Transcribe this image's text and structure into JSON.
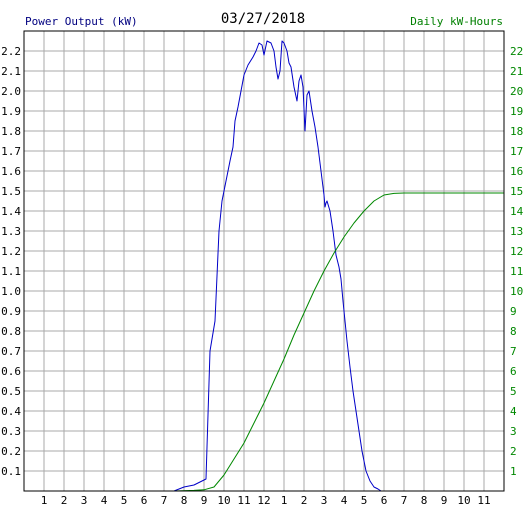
{
  "header": {
    "left_label": "Power Output (kW)",
    "title": "03/27/2018",
    "right_label": "Daily kW-Hours"
  },
  "colors": {
    "power": "#0000c8",
    "energy": "#008800",
    "grid": "#a8a8a8",
    "axis": "#000000",
    "left_label": "#000080",
    "right_label": "#008000"
  },
  "chart_data": {
    "type": "line",
    "title": "03/27/2018",
    "grid": true,
    "x_ticks": [
      "1",
      "2",
      "3",
      "4",
      "5",
      "6",
      "7",
      "8",
      "9",
      "10",
      "11",
      "12",
      "1",
      "2",
      "3",
      "4",
      "5",
      "6",
      "7",
      "8",
      "9",
      "10",
      "11"
    ],
    "xlim": [
      0,
      24
    ],
    "y_left": {
      "label": "Power Output (kW)",
      "range": [
        0,
        2.3
      ],
      "ticks": [
        "0.1",
        "0.2",
        "0.3",
        "0.4",
        "0.5",
        "0.6",
        "0.7",
        "0.8",
        "0.9",
        "1.0",
        "1.1",
        "1.2",
        "1.3",
        "1.4",
        "1.5",
        "1.6",
        "1.7",
        "1.8",
        "1.9",
        "2.0",
        "2.1",
        "2.2"
      ]
    },
    "y_right": {
      "label": "Daily kW-Hours",
      "range": [
        0,
        23
      ],
      "ticks": [
        "1",
        "2",
        "3",
        "4",
        "5",
        "6",
        "7",
        "8",
        "9",
        "10",
        "11",
        "12",
        "13",
        "14",
        "15",
        "16",
        "17",
        "18",
        "19",
        "20",
        "21",
        "22"
      ]
    },
    "series": [
      {
        "name": "Power Output (kW)",
        "axis": "left",
        "x": [
          7.5,
          8.0,
          8.5,
          8.9,
          9.1,
          9.3,
          9.55,
          9.75,
          9.9,
          10.1,
          10.3,
          10.45,
          10.55,
          10.7,
          10.85,
          11.0,
          11.2,
          11.45,
          11.6,
          11.75,
          11.9,
          12.0,
          12.15,
          12.35,
          12.5,
          12.6,
          12.7,
          12.8,
          12.9,
          13.0,
          13.15,
          13.25,
          13.35,
          13.5,
          13.65,
          13.75,
          13.85,
          13.95,
          14.05,
          14.15,
          14.25,
          14.4,
          14.55,
          14.7,
          14.85,
          15.0,
          15.05,
          15.1,
          15.15,
          15.3,
          15.45,
          15.6,
          15.75,
          15.85,
          15.95,
          16.05,
          16.15,
          16.3,
          16.45,
          16.6,
          16.75,
          16.9,
          17.1,
          17.3,
          17.5,
          17.7,
          17.85,
          18.0,
          18.15,
          18.3,
          18.6,
          19.0,
          19.3,
          19.5
        ],
        "values": [
          0.0,
          0.02,
          0.03,
          0.05,
          0.06,
          0.7,
          0.85,
          1.3,
          1.45,
          1.55,
          1.65,
          1.72,
          1.85,
          1.92,
          2.0,
          2.08,
          2.13,
          2.17,
          2.2,
          2.24,
          2.23,
          2.18,
          2.25,
          2.24,
          2.2,
          2.12,
          2.06,
          2.1,
          2.25,
          2.24,
          2.2,
          2.14,
          2.12,
          2.02,
          1.95,
          2.05,
          2.08,
          2.02,
          1.8,
          1.98,
          2.0,
          1.9,
          1.82,
          1.72,
          1.6,
          1.48,
          1.42,
          1.44,
          1.45,
          1.4,
          1.3,
          1.18,
          1.12,
          1.06,
          0.95,
          0.85,
          0.75,
          0.62,
          0.5,
          0.4,
          0.3,
          0.2,
          0.1,
          0.05,
          0.02,
          0.01,
          0.0,
          0.0,
          0.0,
          0.0,
          0.0,
          0.0,
          0.0,
          0.0
        ]
      },
      {
        "name": "Daily kW-Hours",
        "axis": "right",
        "x": [
          7.5,
          8.5,
          9.0,
          9.5,
          10.0,
          10.5,
          11.0,
          11.5,
          12.0,
          12.5,
          13.0,
          13.5,
          14.0,
          14.5,
          15.0,
          15.5,
          16.0,
          16.5,
          17.0,
          17.5,
          18.0,
          18.5,
          19.0,
          19.5,
          20.0,
          21.0,
          22.0,
          23.0,
          24.0
        ],
        "values": [
          0.0,
          0.03,
          0.06,
          0.2,
          0.8,
          1.6,
          2.4,
          3.4,
          4.4,
          5.5,
          6.6,
          7.8,
          8.9,
          10.0,
          11.0,
          11.9,
          12.7,
          13.4,
          14.0,
          14.5,
          14.8,
          14.88,
          14.9,
          14.9,
          14.9,
          14.9,
          14.9,
          14.9,
          14.9
        ]
      }
    ]
  }
}
